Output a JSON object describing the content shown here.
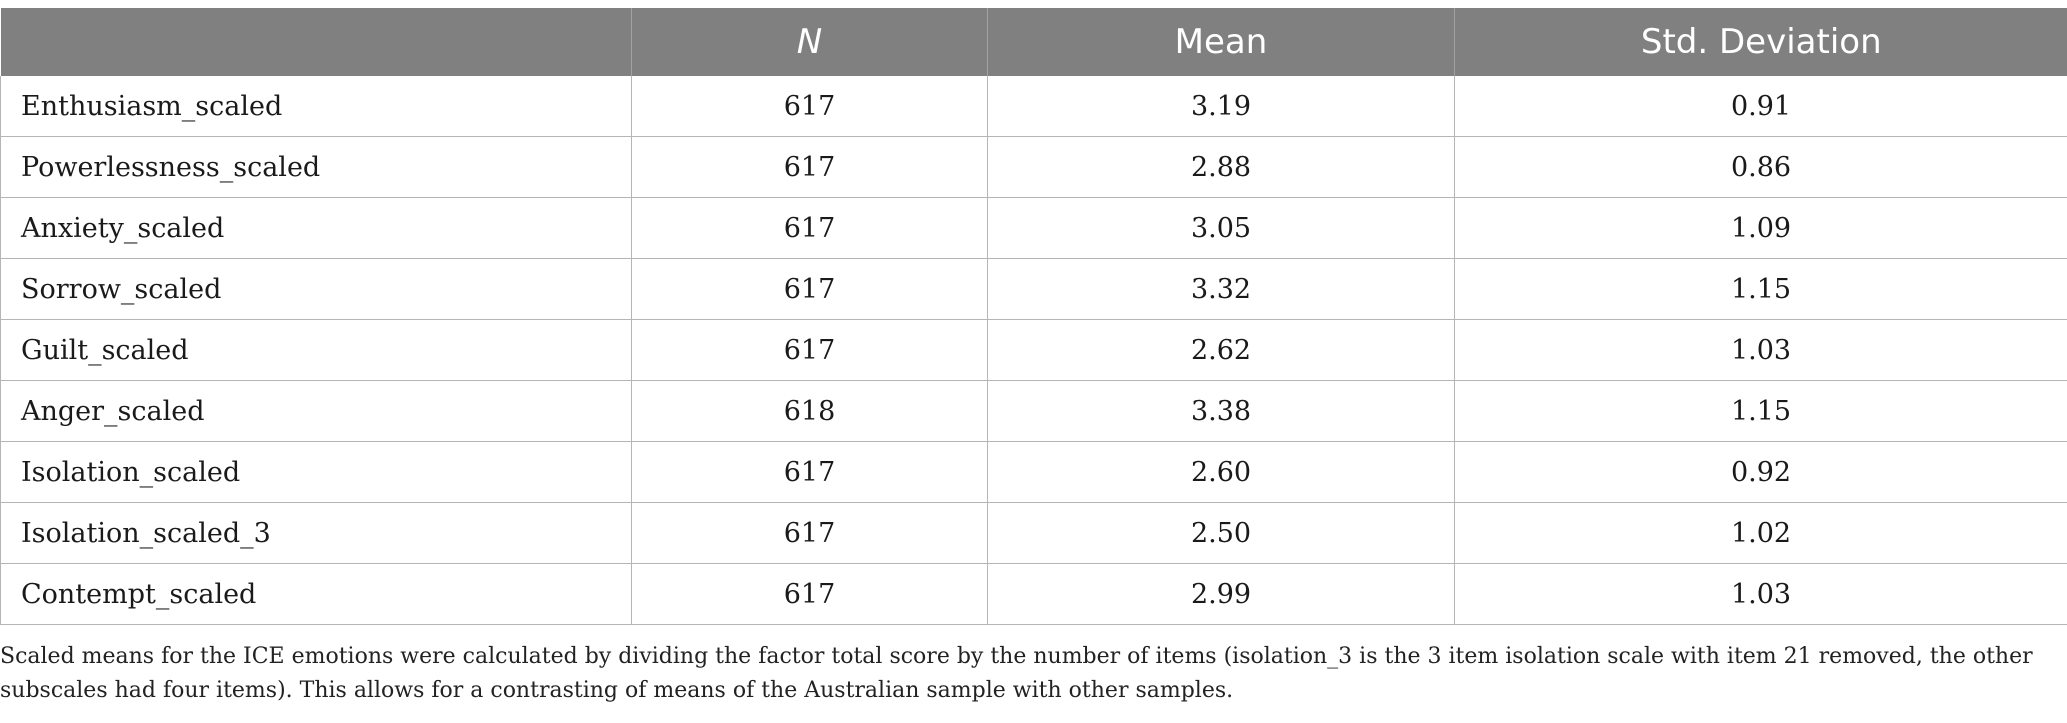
{
  "table": {
    "headers": [
      "",
      "N",
      "Mean",
      "Std. Deviation"
    ],
    "rows": [
      [
        "Enthusiasm_scaled",
        "617",
        "3.19",
        "0.91"
      ],
      [
        "Powerlessness_scaled",
        "617",
        "2.88",
        "0.86"
      ],
      [
        "Anxiety_scaled",
        "617",
        "3.05",
        "1.09"
      ],
      [
        "Sorrow_scaled",
        "617",
        "3.32",
        "1.15"
      ],
      [
        "Guilt_scaled",
        "617",
        "2.62",
        "1.03"
      ],
      [
        "Anger_scaled",
        "618",
        "3.38",
        "1.15"
      ],
      [
        "Isolation_scaled",
        "617",
        "2.60",
        "0.92"
      ],
      [
        "Isolation_scaled_3",
        "617",
        "2.50",
        "1.02"
      ],
      [
        "Contempt_scaled",
        "617",
        "2.99",
        "1.03"
      ]
    ]
  },
  "footnote": "Scaled means for the ICE emotions were calculated by dividing the factor total score by the number of items (isolation_3 is the 3 item isolation scale with item 21 removed, the other subscales had four items). This allows for a contrasting of means of the Australian sample with other samples.",
  "colors": {
    "header_bg": "#808080",
    "header_text": "#ffffff",
    "grid": "#b5b5b5"
  }
}
